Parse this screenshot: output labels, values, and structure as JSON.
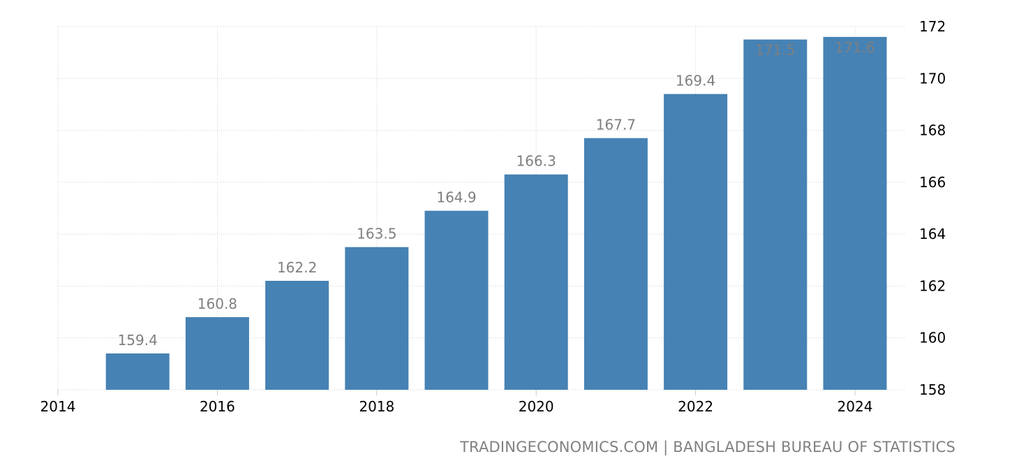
{
  "chart_data": {
    "type": "bar",
    "title": "",
    "xlabel": "",
    "ylabel": "",
    "categories": [
      "2015",
      "2016",
      "2017",
      "2018",
      "2019",
      "2020",
      "2021",
      "2022",
      "2023",
      "2024"
    ],
    "x": [
      2015,
      2016,
      2017,
      2018,
      2019,
      2020,
      2021,
      2022,
      2023,
      2024
    ],
    "values": [
      159.4,
      160.8,
      162.2,
      163.5,
      164.9,
      166.3,
      167.7,
      169.4,
      171.5,
      171.6
    ],
    "data_labels": [
      "159.4",
      "160.8",
      "162.2",
      "163.5",
      "164.9",
      "166.3",
      "167.7",
      "169.4",
      "171.5",
      "171.6"
    ],
    "ylim": [
      158,
      172
    ],
    "yticks": [
      158,
      160,
      162,
      164,
      166,
      168,
      170,
      172
    ],
    "xticks": [
      2014,
      2016,
      2018,
      2020,
      2022,
      2024
    ],
    "xlim": [
      2014,
      2024.65
    ],
    "y_axis_position": "right",
    "grid": true,
    "legend": null,
    "bar_color": "#4682b4",
    "label_color": "#7f7f7f",
    "source": "TRADINGECONOMICS.COM | BANGLADESH BUREAU OF STATISTICS"
  }
}
